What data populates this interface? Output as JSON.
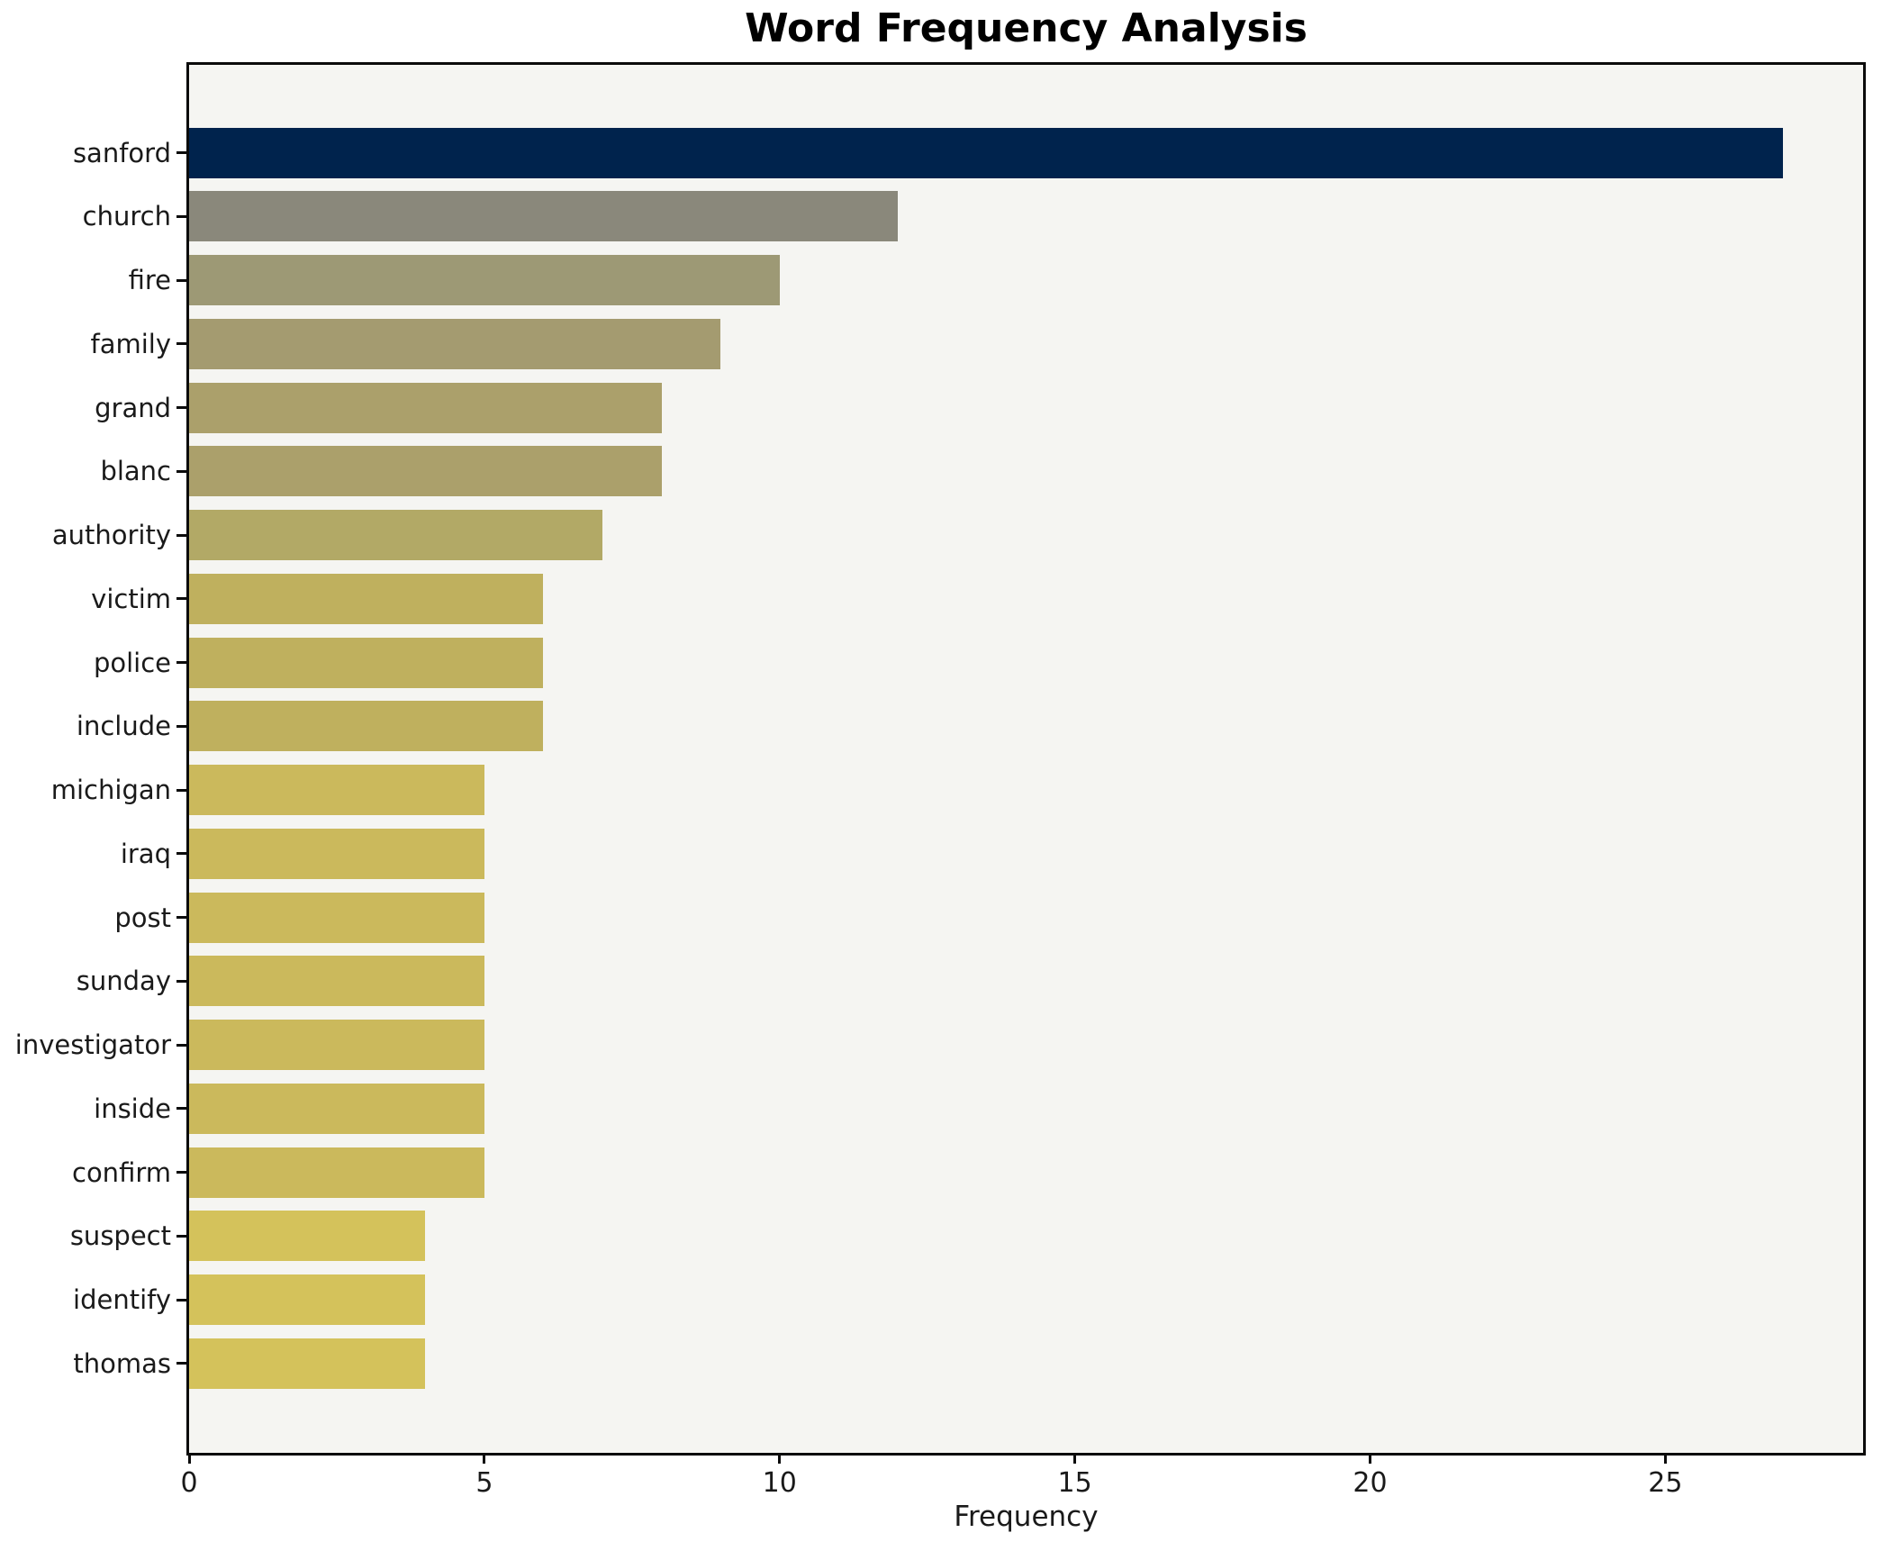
{
  "chart_data": {
    "type": "bar",
    "orientation": "horizontal",
    "title": "Word Frequency Analysis",
    "xlabel": "Frequency",
    "ylabel": "",
    "categories": [
      "sanford",
      "church",
      "fire",
      "family",
      "grand",
      "blanc",
      "authority",
      "victim",
      "police",
      "include",
      "michigan",
      "iraq",
      "post",
      "sunday",
      "investigator",
      "inside",
      "confirm",
      "suspect",
      "identify",
      "thomas"
    ],
    "values": [
      27,
      12,
      10,
      9,
      8,
      8,
      7,
      6,
      6,
      6,
      5,
      5,
      5,
      5,
      5,
      5,
      5,
      4,
      4,
      4
    ],
    "bar_colors": [
      "#00234d",
      "#8a887b",
      "#9d9975",
      "#a49b70",
      "#aba06b",
      "#aba06b",
      "#b2a966",
      "#bfb05e",
      "#bfb05e",
      "#bfb05e",
      "#cbb95c",
      "#cbb95c",
      "#cbb95c",
      "#cbb95c",
      "#cbb95c",
      "#cbb95c",
      "#cbb95c",
      "#d4c25b",
      "#d4c25b",
      "#d4c25b"
    ],
    "xlim": [
      0,
      28.35
    ],
    "xticks": [
      0,
      5,
      10,
      15,
      20,
      25
    ],
    "grid": false,
    "legend_position": "none",
    "plot_background": "#f5f5f2",
    "figure_background": "#ffffff"
  }
}
